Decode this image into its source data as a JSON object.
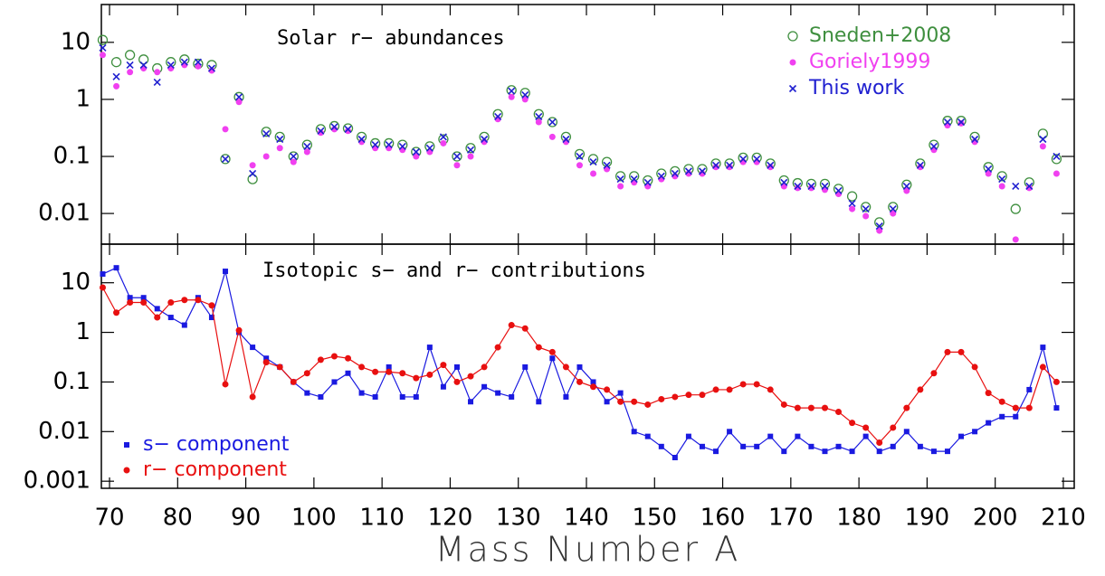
{
  "chart_data": [
    {
      "type": "scatter",
      "title": "Solar r− abundances",
      "log": true,
      "legend": "top-right",
      "xlim": [
        68.8,
        211.6
      ],
      "xticks": [
        70,
        80,
        90,
        100,
        110,
        120,
        130,
        140,
        150,
        160,
        170,
        180,
        190,
        200,
        210
      ],
      "ylim": [
        0.0029,
        46
      ],
      "yticks": [
        0.01,
        0.1,
        1,
        10
      ],
      "x": [
        69,
        71,
        73,
        75,
        77,
        79,
        81,
        83,
        85,
        87,
        89,
        91,
        93,
        95,
        97,
        99,
        101,
        103,
        105,
        107,
        109,
        111,
        113,
        115,
        117,
        119,
        121,
        123,
        125,
        127,
        129,
        131,
        133,
        135,
        137,
        139,
        141,
        143,
        145,
        147,
        149,
        151,
        153,
        155,
        157,
        159,
        161,
        163,
        165,
        167,
        169,
        171,
        173,
        175,
        177,
        179,
        181,
        183,
        185,
        187,
        189,
        191,
        193,
        195,
        197,
        199,
        201,
        203,
        205,
        207,
        209
      ],
      "series": [
        {
          "name": "Sneden+2008",
          "color": "#3f8f3f",
          "marker": "open-circle",
          "values": [
            11,
            4.5,
            6,
            5,
            3.5,
            4.5,
            5,
            4.2,
            4,
            0.09,
            1.1,
            0.04,
            0.27,
            0.22,
            0.1,
            0.16,
            0.3,
            0.34,
            0.31,
            0.22,
            0.17,
            0.17,
            0.16,
            0.12,
            0.15,
            0.2,
            0.1,
            0.14,
            0.22,
            0.55,
            1.45,
            1.3,
            0.55,
            0.4,
            0.22,
            0.11,
            0.09,
            0.08,
            0.045,
            0.045,
            0.038,
            0.05,
            0.055,
            0.06,
            0.06,
            0.075,
            0.075,
            0.095,
            0.095,
            0.075,
            0.038,
            0.034,
            0.033,
            0.033,
            0.027,
            0.02,
            0.013,
            0.007,
            0.013,
            0.032,
            0.075,
            0.16,
            0.42,
            0.42,
            0.22,
            0.065,
            0.045,
            0.012,
            0.035,
            0.25,
            0.09
          ]
        },
        {
          "name": "Goriely1999",
          "color": "#f040f0",
          "marker": "filled-circle",
          "values": [
            6,
            1.7,
            3,
            3.5,
            3,
            3.5,
            4,
            3.8,
            3.2,
            0.3,
            0.9,
            0.07,
            0.1,
            0.14,
            0.08,
            0.12,
            0.26,
            0.3,
            0.28,
            0.18,
            0.14,
            0.14,
            0.13,
            0.1,
            0.12,
            0.17,
            0.07,
            0.1,
            0.18,
            0.45,
            1.1,
            1,
            0.4,
            0.22,
            0.18,
            0.07,
            0.05,
            0.06,
            0.03,
            0.035,
            0.03,
            0.04,
            0.045,
            0.05,
            0.05,
            0.065,
            0.065,
            0.08,
            0.08,
            0.065,
            0.03,
            0.028,
            0.028,
            0.026,
            0.022,
            0.012,
            0.009,
            0.005,
            0.01,
            0.025,
            0.065,
            0.13,
            0.35,
            0.38,
            0.18,
            0.05,
            0.03,
            0.0035,
            0.028,
            0.15,
            0.05
          ]
        },
        {
          "name": "This work",
          "color": "#2020d0",
          "marker": "cross",
          "values": [
            8,
            2.5,
            4,
            4,
            2,
            4,
            4.5,
            4.5,
            3.5,
            0.09,
            1.1,
            0.05,
            0.25,
            0.2,
            0.1,
            0.15,
            0.28,
            0.33,
            0.3,
            0.2,
            0.16,
            0.16,
            0.15,
            0.12,
            0.14,
            0.22,
            0.1,
            0.13,
            0.2,
            0.5,
            1.4,
            1.2,
            0.5,
            0.4,
            0.2,
            0.1,
            0.08,
            0.07,
            0.04,
            0.04,
            0.035,
            0.045,
            0.05,
            0.055,
            0.055,
            0.07,
            0.07,
            0.09,
            0.09,
            0.07,
            0.035,
            0.03,
            0.03,
            0.03,
            0.025,
            0.015,
            0.012,
            0.006,
            0.012,
            0.03,
            0.07,
            0.15,
            0.4,
            0.4,
            0.2,
            0.06,
            0.04,
            0.03,
            0.03,
            0.2,
            0.1
          ]
        }
      ]
    },
    {
      "type": "line",
      "title": "Isotopic s− and r− contributions",
      "log": true,
      "legend": "bottom-left",
      "xlabel": "Mass Number A",
      "xlim": [
        68.8,
        211.6
      ],
      "xticks": [
        70,
        80,
        90,
        100,
        110,
        120,
        130,
        140,
        150,
        160,
        170,
        180,
        190,
        200,
        210
      ],
      "ylim": [
        0.00072,
        60
      ],
      "yticks": [
        0.001,
        0.01,
        0.1,
        1,
        10
      ],
      "x": [
        69,
        71,
        73,
        75,
        77,
        79,
        81,
        83,
        85,
        87,
        89,
        91,
        93,
        95,
        97,
        99,
        101,
        103,
        105,
        107,
        109,
        111,
        113,
        115,
        117,
        119,
        121,
        123,
        125,
        127,
        129,
        131,
        133,
        135,
        137,
        139,
        141,
        143,
        145,
        147,
        149,
        151,
        153,
        155,
        157,
        159,
        161,
        163,
        165,
        167,
        169,
        171,
        173,
        175,
        177,
        179,
        181,
        183,
        185,
        187,
        189,
        191,
        193,
        195,
        197,
        199,
        201,
        203,
        205,
        207,
        209
      ],
      "series": [
        {
          "name": "s− component",
          "color": "#1a1ae0",
          "marker": "square",
          "values": [
            15,
            20,
            5,
            5,
            3,
            2,
            1.4,
            5,
            2,
            17,
            1,
            0.5,
            0.3,
            0.2,
            0.1,
            0.06,
            0.05,
            0.1,
            0.15,
            0.06,
            0.05,
            0.2,
            0.05,
            0.05,
            0.5,
            0.08,
            0.2,
            0.04,
            0.08,
            0.06,
            0.05,
            0.2,
            0.04,
            0.3,
            0.05,
            0.2,
            0.1,
            0.04,
            0.06,
            0.01,
            0.008,
            0.005,
            0.003,
            0.008,
            0.005,
            0.004,
            0.01,
            0.005,
            0.005,
            0.008,
            0.004,
            0.008,
            0.005,
            0.004,
            0.005,
            0.004,
            0.008,
            0.004,
            0.005,
            0.01,
            0.005,
            0.004,
            0.004,
            0.008,
            0.01,
            0.015,
            0.02,
            0.02,
            0.07,
            0.5,
            0.03
          ]
        },
        {
          "name": "r− component",
          "color": "#e81010",
          "marker": "filled-circle",
          "values": [
            8,
            2.5,
            4,
            4,
            2,
            4,
            4.5,
            4.5,
            3.5,
            0.09,
            1.1,
            0.05,
            0.25,
            0.2,
            0.1,
            0.15,
            0.28,
            0.33,
            0.3,
            0.2,
            0.16,
            0.16,
            0.15,
            0.12,
            0.14,
            0.22,
            0.1,
            0.13,
            0.2,
            0.5,
            1.4,
            1.2,
            0.5,
            0.4,
            0.2,
            0.1,
            0.08,
            0.07,
            0.04,
            0.04,
            0.035,
            0.045,
            0.05,
            0.055,
            0.055,
            0.07,
            0.07,
            0.09,
            0.09,
            0.07,
            0.035,
            0.03,
            0.03,
            0.03,
            0.025,
            0.015,
            0.012,
            0.006,
            0.012,
            0.03,
            0.07,
            0.15,
            0.4,
            0.4,
            0.2,
            0.06,
            0.04,
            0.03,
            0.03,
            0.2,
            0.1
          ]
        }
      ]
    }
  ]
}
